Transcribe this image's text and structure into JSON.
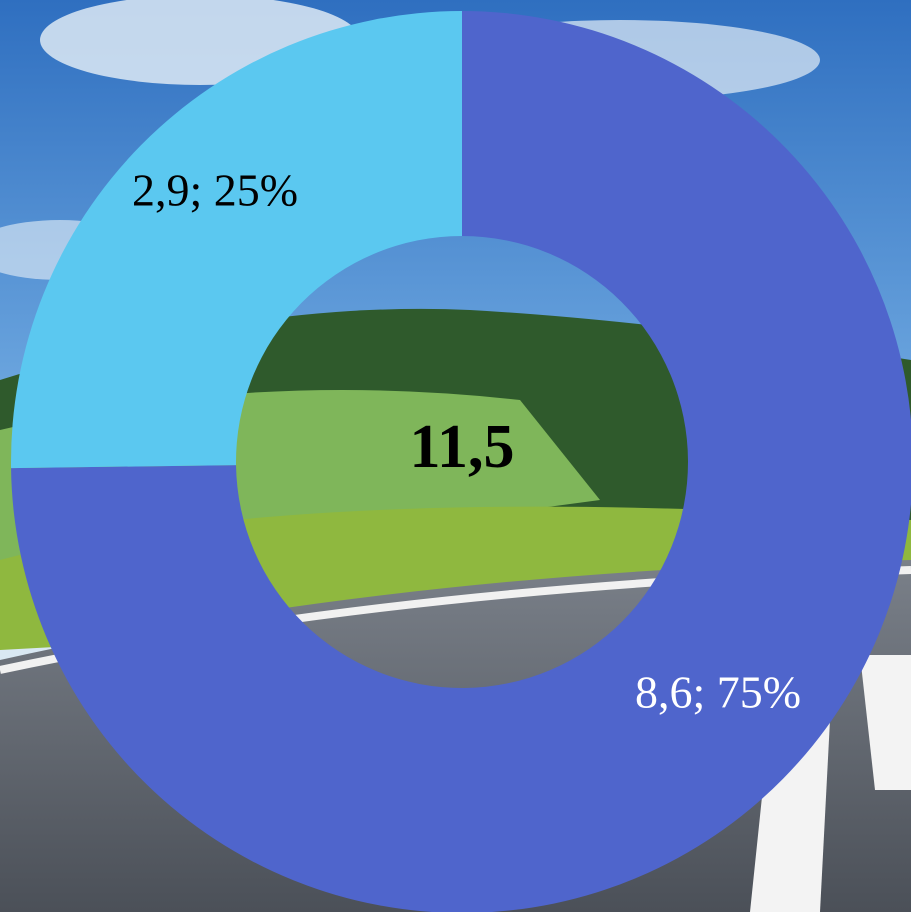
{
  "chart_data": {
    "type": "donut",
    "categories": [
      null,
      null
    ],
    "values": [
      8.6,
      2.9
    ],
    "value_labels": [
      "8,6; 75%",
      "2,9; 25%"
    ],
    "colors": [
      "#4f65cc",
      "#5bc8f0"
    ],
    "center_text": "11,5"
  }
}
